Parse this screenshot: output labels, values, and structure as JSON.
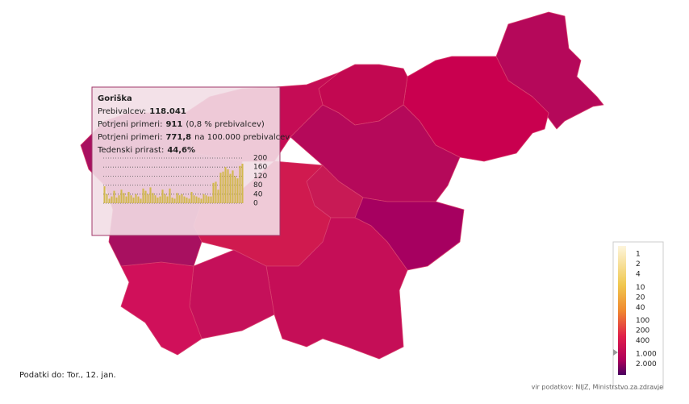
{
  "tooltip": {
    "region": "Goriška",
    "rows": [
      {
        "label": "Prebivalcev:",
        "value": "118.041"
      },
      {
        "label": "Potrjeni primeri:",
        "value": "911",
        "note": "(0,8 % prebivalcev)"
      },
      {
        "label": "Potrjeni primeri:",
        "value": "771,8",
        "note": "na 100.000 prebivalcev"
      },
      {
        "label": "Tedenski prirast:",
        "value": "44,6%"
      }
    ],
    "chart": {
      "type": "bar",
      "color": "#d2b84e",
      "ylim": [
        0,
        200
      ],
      "yticks": [
        200,
        160,
        120,
        80,
        40,
        0
      ],
      "values": [
        75,
        40,
        20,
        30,
        55,
        25,
        35,
        60,
        45,
        30,
        50,
        35,
        25,
        40,
        30,
        20,
        65,
        55,
        40,
        70,
        45,
        35,
        25,
        30,
        60,
        40,
        30,
        65,
        25,
        20,
        45,
        35,
        40,
        30,
        25,
        20,
        50,
        35,
        30,
        25,
        20,
        40,
        35,
        30,
        30,
        90,
        95,
        60,
        135,
        140,
        160,
        150,
        130,
        145,
        120,
        110,
        165,
        175
      ]
    }
  },
  "legend": {
    "labels": [
      "1",
      "2",
      "4",
      "10",
      "20",
      "40",
      "100",
      "200",
      "400",
      "1.000",
      "2.000"
    ]
  },
  "footer": {
    "date": "Podatki do: Tor., 12. jan.",
    "source": "vir podatkov: NIJZ, Ministrstvo za zdravje"
  }
}
